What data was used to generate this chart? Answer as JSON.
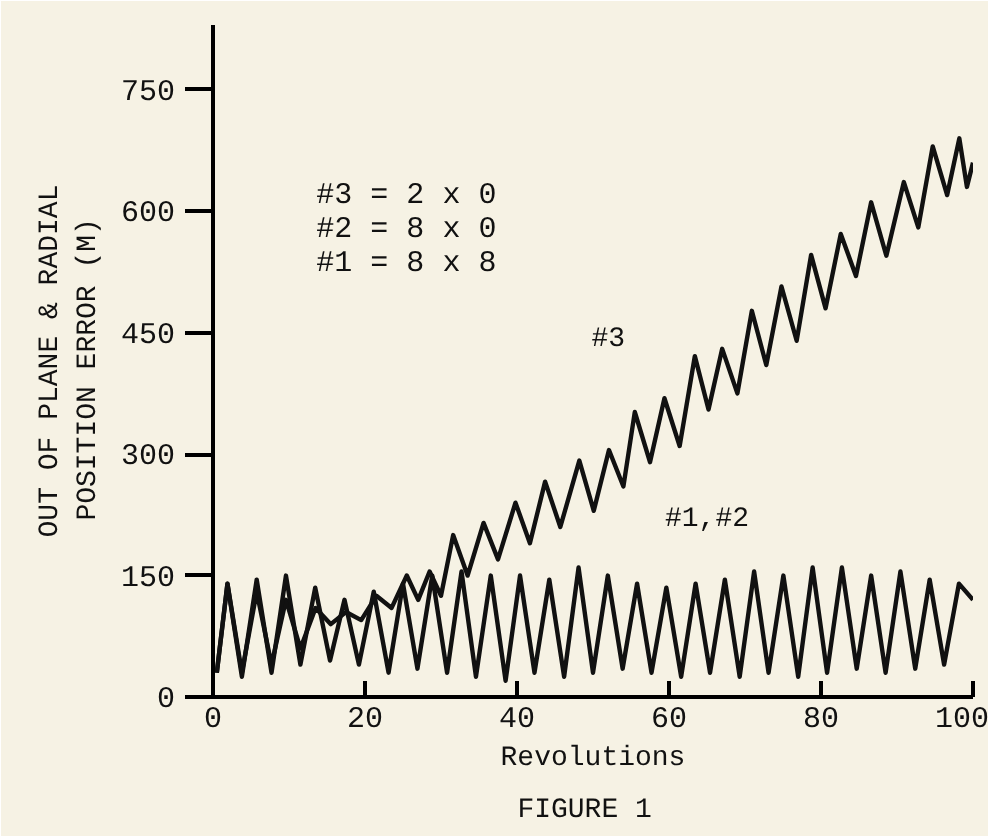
{
  "chart_data": {
    "type": "line",
    "xlabel": "Revolutions",
    "ylabel": "OUT OF PLANE & RADIAL\nPOSITION ERROR  (M)",
    "xlim": [
      0,
      100
    ],
    "ylim": [
      0,
      830
    ],
    "xticks": [
      0,
      20,
      40,
      60,
      80,
      100
    ],
    "yticks": [
      0,
      150,
      300,
      450,
      600,
      750
    ],
    "grid": false,
    "marker": "none",
    "line_style": "solid",
    "annotations": [
      "#3 = 2 x 0",
      "#2 = 8 x 0",
      "#1 = 8 x 8",
      "FIGURE  1"
    ],
    "series": [
      {
        "name": "#3",
        "color": "#111111",
        "x": [
          0.5,
          1.9,
          3.8,
          5.75,
          7.7,
          9.6,
          11.5,
          13.5,
          15.5,
          17.5,
          19.5,
          21.5,
          23.5,
          25.5,
          27,
          28.5,
          30,
          31.6,
          33.5,
          35.6,
          37.5,
          39.8,
          41.7,
          43.7,
          45.7,
          48.2,
          50.1,
          52.1,
          54,
          55.5,
          57.5,
          59.4,
          61.4,
          63.4,
          65.2,
          67,
          69,
          70.9,
          72.8,
          74.8,
          76.8,
          78.7,
          80.6,
          82.6,
          84.6,
          86.6,
          88.6,
          90.9,
          92.8,
          94.7,
          96.6,
          98.2,
          99.2,
          100
        ],
        "values": [
          30,
          140,
          30,
          130,
          40,
          120,
          60,
          110,
          90,
          105,
          95,
          125,
          110,
          150,
          120,
          155,
          125,
          200,
          150,
          215,
          170,
          240,
          190,
          266,
          210,
          292,
          230,
          305,
          260,
          352,
          290,
          369,
          310,
          421,
          355,
          430,
          375,
          477,
          410,
          507,
          440,
          546,
          480,
          572,
          520,
          611,
          545,
          636,
          580,
          680,
          620,
          690,
          630,
          660
        ]
      },
      {
        "name": "#1,#2",
        "color": "#111111",
        "x": [
          0.5,
          1.9,
          3.8,
          5.75,
          7.7,
          9.6,
          11.5,
          13.45,
          15.4,
          17.3,
          19.2,
          21.15,
          23.1,
          25.0,
          26.9,
          28.85,
          30.8,
          32.7,
          34.6,
          36.55,
          38.5,
          40.4,
          42.3,
          44.25,
          46.2,
          48.1,
          50.0,
          51.95,
          53.9,
          55.8,
          57.7,
          59.65,
          61.6,
          63.5,
          65.4,
          67.35,
          69.3,
          71.2,
          73.1,
          75.05,
          77.0,
          78.9,
          80.8,
          82.75,
          84.7,
          86.6,
          88.5,
          90.45,
          92.4,
          94.3,
          96.2,
          98.15,
          100
        ],
        "values": [
          30,
          140,
          25,
          145,
          30,
          150,
          40,
          135,
          45,
          120,
          40,
          130,
          30,
          140,
          35,
          150,
          30,
          155,
          25,
          150,
          20,
          150,
          30,
          145,
          25,
          160,
          30,
          150,
          35,
          140,
          30,
          135,
          25,
          140,
          30,
          145,
          25,
          155,
          30,
          150,
          25,
          160,
          30,
          160,
          35,
          150,
          30,
          155,
          35,
          145,
          40,
          140,
          120
        ]
      }
    ]
  }
}
